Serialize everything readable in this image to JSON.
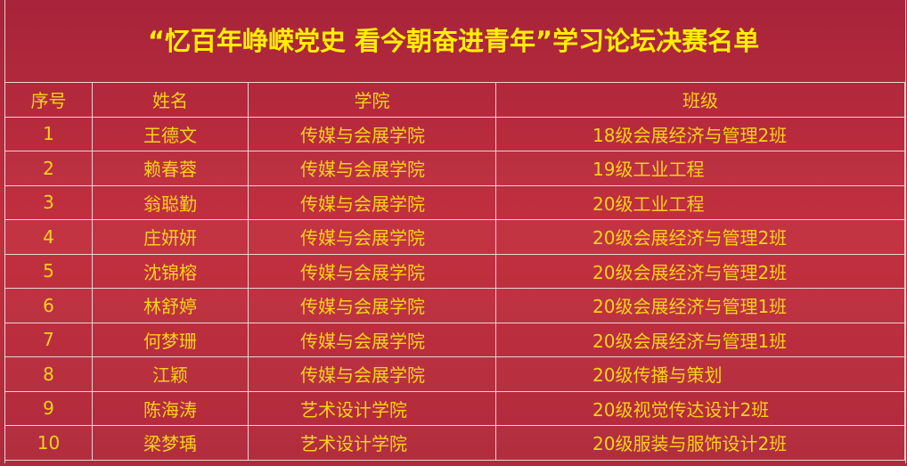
{
  "title": "“忆百年峥嵘党史 看今朝奋进青年”学习论坛决赛名单",
  "colors": {
    "background": "#b8283f",
    "text": "#f7d21a",
    "title": "#ffee00",
    "grid": "#ecd2d6"
  },
  "table": {
    "headers": [
      "序号",
      "姓名",
      "学院",
      "班级"
    ],
    "rows": [
      [
        "1",
        "王德文",
        "传媒与会展学院",
        "18级会展经济与管理2班"
      ],
      [
        "2",
        "赖春蓉",
        "传媒与会展学院",
        "19级工业工程"
      ],
      [
        "3",
        "翁聪勤",
        "传媒与会展学院",
        "20级工业工程"
      ],
      [
        "4",
        "庄妍妍",
        "传媒与会展学院",
        "20级会展经济与管理2班"
      ],
      [
        "5",
        "沈锦榕",
        "传媒与会展学院",
        "20级会展经济与管理2班"
      ],
      [
        "6",
        "林舒婷",
        "传媒与会展学院",
        "20级会展经济与管理1班"
      ],
      [
        "7",
        "何梦珊",
        "传媒与会展学院",
        "20级会展经济与管理1班"
      ],
      [
        "8",
        "江颖",
        "传媒与会展学院",
        "20级传播与策划"
      ],
      [
        "9",
        "陈海涛",
        "艺术设计学院",
        "20级视觉传达设计2班"
      ],
      [
        "10",
        "梁梦瑀",
        "艺术设计学院",
        "20级服装与服饰设计2班"
      ]
    ]
  }
}
